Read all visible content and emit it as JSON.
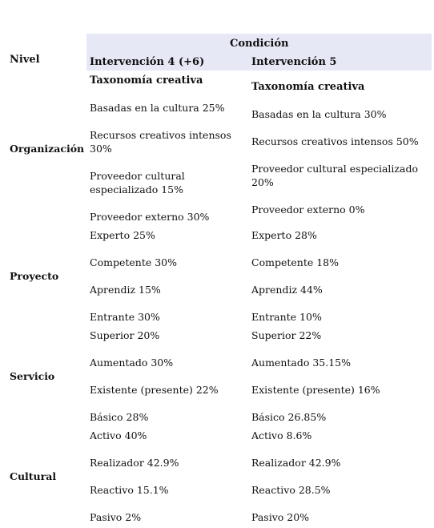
{
  "header": {
    "nivel": "Nivel",
    "condicion": "Condición",
    "col1": "Intervención 4 (+6)",
    "col2": "Intervención 5"
  },
  "levels": [
    "Organización",
    "Proyecto",
    "Servicio",
    "Cultural"
  ],
  "col1": [
    "Taxonomía creativa",
    "Basadas en la cultura 25%",
    "Recursos creativos intensos 30%",
    "Proveedor cultural especializado 15%",
    "Proveedor externo 30%",
    "Experto 25%",
    "Competente 30%",
    "Aprendiz 15%",
    "Entrante 30%",
    "Superior 20%",
    "Aumentado 30%",
    "Existente (presente) 22%",
    "Básico 28%",
    "Activo 40%",
    "Realizador 42.9%",
    "Reactivo 15.1%",
    "Pasivo 2%"
  ],
  "col2": [
    "Taxonomía creativa",
    "Basadas en la cultura 30%",
    "Recursos creativos intensos 50%",
    "Proveedor cultural especializado 20%",
    "Proveedor externo 0%",
    "Experto 28%",
    "Competente 18%",
    "Aprendiz 44%",
    "Entrante 10%",
    "Superior 22%",
    "Aumentado 35.15%",
    "Existente (presente) 16%",
    "Básico 26.85%",
    "Activo 8.6%",
    "Realizador 42.9%",
    "Reactivo 28.5%",
    "Pasivo 20%"
  ]
}
